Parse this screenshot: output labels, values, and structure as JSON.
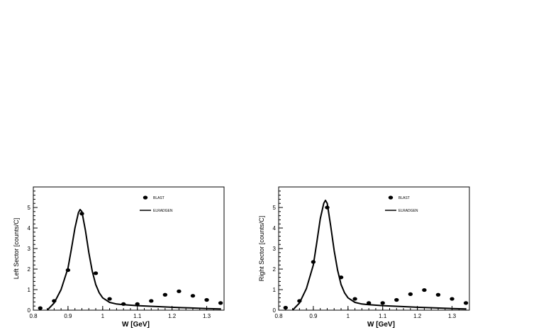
{
  "chart_data": [
    {
      "type": "scatter",
      "xlabel": "W [GeV]",
      "ylabel": "Left Sector [counts/C]",
      "xlim": [
        0.8,
        1.35
      ],
      "ylim": [
        0,
        6
      ],
      "x_ticks": [
        "0.8",
        "0.9",
        "1",
        "1.1",
        "1.2",
        "1.3"
      ],
      "y_ticks": [
        "0",
        "1",
        "2",
        "3",
        "4",
        "5"
      ],
      "legend_position": "top-right",
      "series": [
        {
          "name": "BLAST",
          "kind": "points",
          "x": [
            0.82,
            0.86,
            0.9,
            0.94,
            0.98,
            1.02,
            1.06,
            1.1,
            1.14,
            1.18,
            1.22,
            1.26,
            1.3,
            1.34
          ],
          "y": [
            0.1,
            0.45,
            1.95,
            4.7,
            1.8,
            0.55,
            0.3,
            0.3,
            0.45,
            0.75,
            0.92,
            0.7,
            0.5,
            0.35
          ]
        },
        {
          "name": "ELRADGEN",
          "kind": "line",
          "x": [
            0.84,
            0.86,
            0.88,
            0.9,
            0.91,
            0.92,
            0.93,
            0.935,
            0.94,
            0.95,
            0.96,
            0.97,
            0.98,
            0.99,
            1.0,
            1.02,
            1.04,
            1.06,
            1.1,
            1.15,
            1.2,
            1.25,
            1.3,
            1.34
          ],
          "y": [
            0.0,
            0.35,
            1.0,
            2.05,
            3.0,
            4.0,
            4.75,
            4.9,
            4.8,
            3.9,
            2.8,
            1.9,
            1.25,
            0.85,
            0.6,
            0.38,
            0.3,
            0.27,
            0.22,
            0.18,
            0.14,
            0.11,
            0.08,
            0.06
          ]
        }
      ]
    },
    {
      "type": "scatter",
      "xlabel": "W [GeV]",
      "ylabel": "Right Sector [counts/C]",
      "xlim": [
        0.8,
        1.35
      ],
      "ylim": [
        0,
        6
      ],
      "x_ticks": [
        "0.8",
        "0.9",
        "1",
        "1.1",
        "1.2",
        "1.3"
      ],
      "y_ticks": [
        "0",
        "1",
        "2",
        "3",
        "4",
        "5"
      ],
      "legend_position": "top-right",
      "series": [
        {
          "name": "BLAST",
          "kind": "points",
          "x": [
            0.82,
            0.86,
            0.9,
            0.94,
            0.98,
            1.02,
            1.06,
            1.1,
            1.14,
            1.18,
            1.22,
            1.26,
            1.3,
            1.34
          ],
          "y": [
            0.12,
            0.45,
            2.35,
            5.0,
            1.6,
            0.55,
            0.35,
            0.35,
            0.5,
            0.78,
            0.98,
            0.75,
            0.55,
            0.35
          ]
        },
        {
          "name": "ELRADGEN",
          "kind": "line",
          "x": [
            0.84,
            0.86,
            0.88,
            0.9,
            0.91,
            0.92,
            0.93,
            0.935,
            0.94,
            0.95,
            0.96,
            0.97,
            0.98,
            0.99,
            1.0,
            1.02,
            1.04,
            1.06,
            1.1,
            1.15,
            1.2,
            1.25,
            1.3,
            1.34
          ],
          "y": [
            0.0,
            0.35,
            1.05,
            2.2,
            3.3,
            4.45,
            5.2,
            5.35,
            5.2,
            4.1,
            2.9,
            1.95,
            1.25,
            0.85,
            0.6,
            0.38,
            0.3,
            0.27,
            0.22,
            0.18,
            0.14,
            0.11,
            0.08,
            0.06
          ]
        }
      ]
    }
  ]
}
